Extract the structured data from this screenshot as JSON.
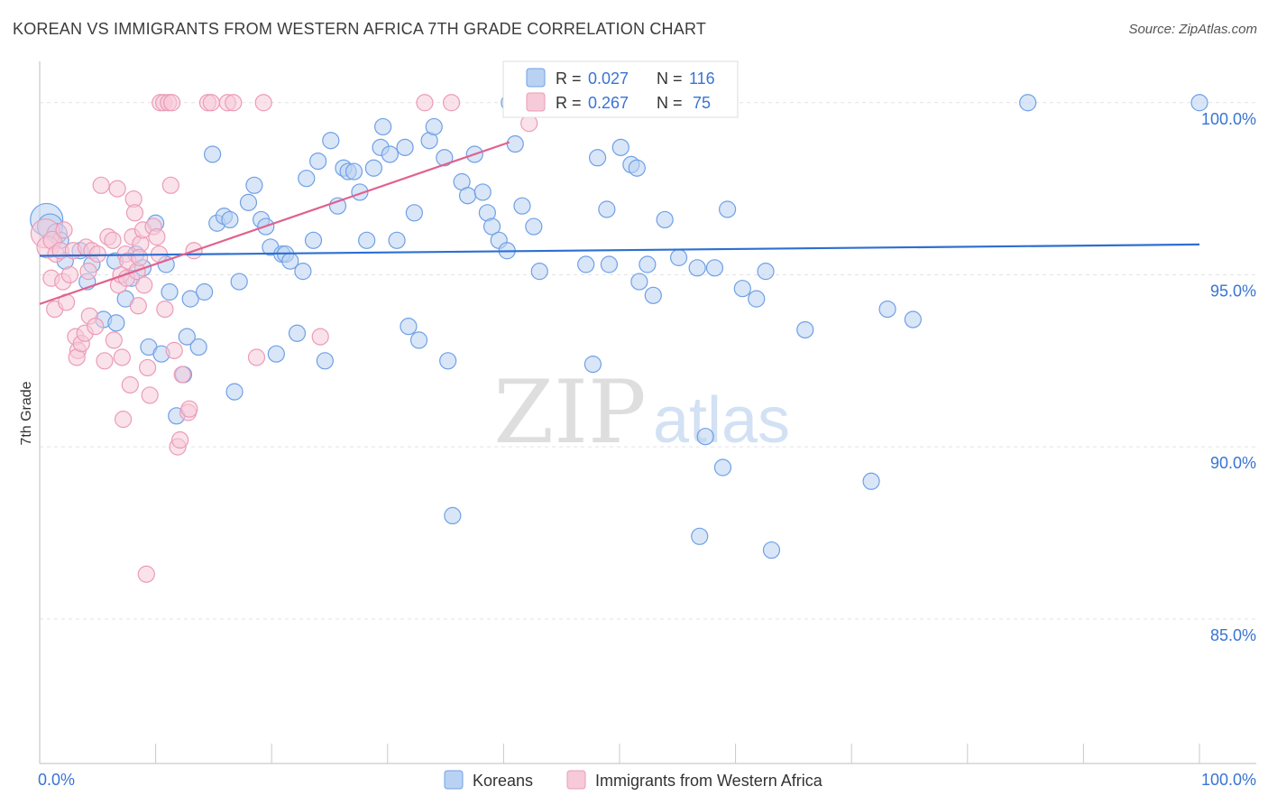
{
  "chart_data": {
    "type": "scatter",
    "title": "KOREAN VS IMMIGRANTS FROM WESTERN AFRICA 7TH GRADE CORRELATION CHART",
    "source": "Source: ZipAtlas.com",
    "watermark": {
      "zip": "ZIP",
      "atlas": "atlas"
    },
    "ylabel": "7th Grade",
    "xlim": [
      0,
      100
    ],
    "ylim": [
      80.8,
      101.2
    ],
    "x_tick_labels": [
      {
        "value": 0,
        "label": "0.0%"
      },
      {
        "value": 100,
        "label": "100.0%"
      }
    ],
    "y_tick_labels": [
      {
        "value": 100,
        "label": "100.0%"
      },
      {
        "value": 95,
        "label": "95.0%"
      },
      {
        "value": 90,
        "label": "90.0%"
      },
      {
        "value": 85,
        "label": "85.0%"
      }
    ],
    "x_minor_ticks": [
      0,
      10,
      20,
      30,
      40,
      50,
      60,
      70,
      80,
      90,
      100
    ],
    "grid": "dashed horizontal",
    "legend_position": "top-center",
    "series": [
      {
        "name": "Koreans",
        "color": "#6fa0e6",
        "fill": "#b9d2f3",
        "line_color": "#2e6fd1",
        "r_label": "R =",
        "r_value": "0.027",
        "n_label": "N =",
        "n_value": "116",
        "trend": {
          "x0": 0,
          "y0": 95.55,
          "x1": 100,
          "y1": 95.88
        },
        "points": [
          [
            0.6,
            96.6,
            18
          ],
          [
            0.9,
            96.4,
            14
          ],
          [
            1.5,
            96.2,
            11
          ],
          [
            1.8,
            96.0,
            9
          ],
          [
            2.2,
            95.4,
            9
          ],
          [
            3.5,
            95.7,
            9
          ],
          [
            4.1,
            94.8,
            9
          ],
          [
            4.5,
            95.3,
            9
          ],
          [
            5.5,
            93.7,
            9
          ],
          [
            6.5,
            95.4,
            9
          ],
          [
            6.6,
            93.6,
            9
          ],
          [
            7.4,
            94.3,
            9
          ],
          [
            7.9,
            94.9,
            9
          ],
          [
            8.3,
            95.6,
            9
          ],
          [
            8.9,
            95.2,
            9
          ],
          [
            9.4,
            92.9,
            9
          ],
          [
            10.0,
            96.5,
            9
          ],
          [
            10.5,
            92.7,
            9
          ],
          [
            10.9,
            95.3,
            9
          ],
          [
            11.2,
            94.5,
            9
          ],
          [
            11.8,
            90.9,
            9
          ],
          [
            12.4,
            92.1,
            9
          ],
          [
            12.7,
            93.2,
            9
          ],
          [
            13.0,
            94.3,
            9
          ],
          [
            13.7,
            92.9,
            9
          ],
          [
            14.2,
            94.5,
            9
          ],
          [
            14.9,
            98.5,
            9
          ],
          [
            15.3,
            96.5,
            9
          ],
          [
            15.9,
            96.7,
            9
          ],
          [
            16.4,
            96.6,
            9
          ],
          [
            16.8,
            91.6,
            9
          ],
          [
            17.2,
            94.8,
            9
          ],
          [
            18.0,
            97.1,
            9
          ],
          [
            18.5,
            97.6,
            9
          ],
          [
            19.1,
            96.6,
            9
          ],
          [
            19.5,
            96.4,
            9
          ],
          [
            19.9,
            95.8,
            9
          ],
          [
            20.4,
            92.7,
            9
          ],
          [
            20.9,
            95.6,
            9
          ],
          [
            21.2,
            95.6,
            9
          ],
          [
            21.6,
            95.4,
            9
          ],
          [
            22.2,
            93.3,
            9
          ],
          [
            22.7,
            95.1,
            9
          ],
          [
            23.0,
            97.8,
            9
          ],
          [
            23.6,
            96.0,
            9
          ],
          [
            24.0,
            98.3,
            9
          ],
          [
            24.6,
            92.5,
            9
          ],
          [
            25.1,
            98.9,
            9
          ],
          [
            25.7,
            97.0,
            9
          ],
          [
            26.2,
            98.1,
            9
          ],
          [
            26.6,
            98.0,
            9
          ],
          [
            27.1,
            98.0,
            9
          ],
          [
            27.6,
            97.4,
            9
          ],
          [
            28.2,
            96.0,
            9
          ],
          [
            28.8,
            98.1,
            9
          ],
          [
            29.4,
            98.7,
            9
          ],
          [
            29.6,
            99.3,
            9
          ],
          [
            30.2,
            98.5,
            9
          ],
          [
            30.8,
            96.0,
            9
          ],
          [
            31.5,
            98.7,
            9
          ],
          [
            31.8,
            93.5,
            9
          ],
          [
            32.3,
            96.8,
            9
          ],
          [
            32.7,
            93.1,
            9
          ],
          [
            33.6,
            98.9,
            9
          ],
          [
            34.0,
            99.3,
            9
          ],
          [
            34.9,
            98.4,
            9
          ],
          [
            35.2,
            92.5,
            9
          ],
          [
            35.6,
            88.0,
            9
          ],
          [
            36.4,
            97.7,
            9
          ],
          [
            36.9,
            97.3,
            9
          ],
          [
            37.5,
            98.5,
            9
          ],
          [
            38.2,
            97.4,
            9
          ],
          [
            38.6,
            96.8,
            9
          ],
          [
            39.0,
            96.4,
            9
          ],
          [
            39.6,
            96.0,
            9
          ],
          [
            40.3,
            95.7,
            9
          ],
          [
            40.5,
            100.0,
            9
          ],
          [
            41.0,
            98.8,
            9
          ],
          [
            41.6,
            97.0,
            9
          ],
          [
            42.6,
            96.4,
            9
          ],
          [
            43.1,
            95.1,
            9
          ],
          [
            47.1,
            95.3,
            9
          ],
          [
            47.7,
            92.4,
            9
          ],
          [
            48.1,
            98.4,
            9
          ],
          [
            48.9,
            96.9,
            9
          ],
          [
            49.1,
            95.3,
            9
          ],
          [
            50.1,
            98.7,
            9
          ],
          [
            50.3,
            100.0,
            9
          ],
          [
            51.0,
            98.2,
            9
          ],
          [
            51.5,
            98.1,
            9
          ],
          [
            51.7,
            94.8,
            9
          ],
          [
            52.4,
            95.3,
            9
          ],
          [
            52.9,
            94.4,
            9
          ],
          [
            53.4,
            100.0,
            9
          ],
          [
            53.9,
            96.6,
            9
          ],
          [
            54.3,
            100.0,
            9
          ],
          [
            55.1,
            95.5,
            9
          ],
          [
            57.4,
            90.3,
            9
          ],
          [
            56.9,
            87.4,
            9
          ],
          [
            56.7,
            95.2,
            9
          ],
          [
            58.2,
            95.2,
            9
          ],
          [
            58.9,
            89.4,
            9
          ],
          [
            59.3,
            96.9,
            9
          ],
          [
            60.6,
            94.6,
            9
          ],
          [
            61.8,
            94.3,
            9
          ],
          [
            62.6,
            95.1,
            9
          ],
          [
            63.1,
            87.0,
            9
          ],
          [
            66.0,
            93.4,
            9
          ],
          [
            71.7,
            89.0,
            9
          ],
          [
            73.1,
            94.0,
            9
          ],
          [
            75.3,
            93.7,
            9
          ],
          [
            85.2,
            100.0,
            9
          ],
          [
            100.0,
            100.0,
            9
          ]
        ]
      },
      {
        "name": "Immigrants from Western Africa",
        "color": "#ec9bb6",
        "fill": "#f6cad8",
        "line_color": "#e0628e",
        "r_label": "R =",
        "r_value": "0.267",
        "n_label": "N =",
        "n_value": "75",
        "trend": {
          "x0": 0,
          "y0": 94.15,
          "x1": 40.5,
          "y1": 98.85
        },
        "points": [
          [
            0.5,
            96.2,
            16
          ],
          [
            0.7,
            95.8,
            12
          ],
          [
            1.1,
            96.0,
            10
          ],
          [
            1.4,
            95.6,
            9
          ],
          [
            1.8,
            95.7,
            9
          ],
          [
            2.1,
            96.3,
            9
          ],
          [
            1.0,
            94.9,
            9
          ],
          [
            1.3,
            94.0,
            9
          ],
          [
            2.0,
            94.8,
            9
          ],
          [
            2.3,
            94.2,
            9
          ],
          [
            2.9,
            95.7,
            9
          ],
          [
            2.6,
            95.0,
            9
          ],
          [
            3.1,
            93.2,
            9
          ],
          [
            3.3,
            92.8,
            9
          ],
          [
            3.2,
            92.6,
            9
          ],
          [
            3.6,
            93.0,
            9
          ],
          [
            3.9,
            93.3,
            9
          ],
          [
            4.0,
            95.8,
            9
          ],
          [
            4.2,
            95.1,
            9
          ],
          [
            4.3,
            93.8,
            9
          ],
          [
            4.8,
            93.5,
            9
          ],
          [
            4.5,
            95.7,
            9
          ],
          [
            5.0,
            95.6,
            9
          ],
          [
            5.3,
            97.6,
            9
          ],
          [
            5.6,
            92.5,
            9
          ],
          [
            5.9,
            96.1,
            9
          ],
          [
            6.3,
            96.0,
            9
          ],
          [
            6.4,
            93.1,
            9
          ],
          [
            6.7,
            97.5,
            9
          ],
          [
            6.8,
            94.7,
            9
          ],
          [
            7.0,
            95.0,
            9
          ],
          [
            7.1,
            92.6,
            9
          ],
          [
            7.2,
            90.8,
            9
          ],
          [
            7.4,
            95.6,
            9
          ],
          [
            7.5,
            94.9,
            9
          ],
          [
            7.6,
            95.4,
            9
          ],
          [
            7.8,
            91.8,
            9
          ],
          [
            8.0,
            96.1,
            9
          ],
          [
            8.1,
            97.2,
            9
          ],
          [
            8.2,
            96.8,
            9
          ],
          [
            8.4,
            95.1,
            9
          ],
          [
            8.5,
            94.1,
            9
          ],
          [
            8.7,
            95.9,
            9
          ],
          [
            8.9,
            96.3,
            9
          ],
          [
            9.0,
            94.7,
            9
          ],
          [
            9.3,
            92.3,
            9
          ],
          [
            9.5,
            91.5,
            9
          ],
          [
            9.8,
            96.4,
            9
          ],
          [
            10.1,
            96.1,
            9
          ],
          [
            10.3,
            95.6,
            9
          ],
          [
            10.8,
            94.0,
            9
          ],
          [
            11.3,
            97.6,
            9
          ],
          [
            11.6,
            92.8,
            9
          ],
          [
            11.9,
            90.0,
            9
          ],
          [
            12.1,
            90.2,
            9
          ],
          [
            12.3,
            92.1,
            9
          ],
          [
            12.8,
            91.0,
            9
          ],
          [
            12.9,
            91.1,
            9
          ],
          [
            13.3,
            95.7,
            9
          ],
          [
            10.4,
            100.0,
            9
          ],
          [
            10.7,
            100.0,
            9
          ],
          [
            11.1,
            100.0,
            9
          ],
          [
            11.4,
            100.0,
            9
          ],
          [
            14.5,
            100.0,
            9
          ],
          [
            14.8,
            100.0,
            9
          ],
          [
            16.2,
            100.0,
            9
          ],
          [
            16.7,
            100.0,
            9
          ],
          [
            19.3,
            100.0,
            9
          ],
          [
            24.2,
            93.2,
            9
          ],
          [
            18.7,
            92.6,
            9
          ],
          [
            33.2,
            100.0,
            9
          ],
          [
            35.5,
            100.0,
            9
          ],
          [
            9.2,
            86.3,
            9
          ],
          [
            42.2,
            99.4,
            9
          ],
          [
            8.6,
            95.5,
            9
          ]
        ]
      }
    ]
  }
}
